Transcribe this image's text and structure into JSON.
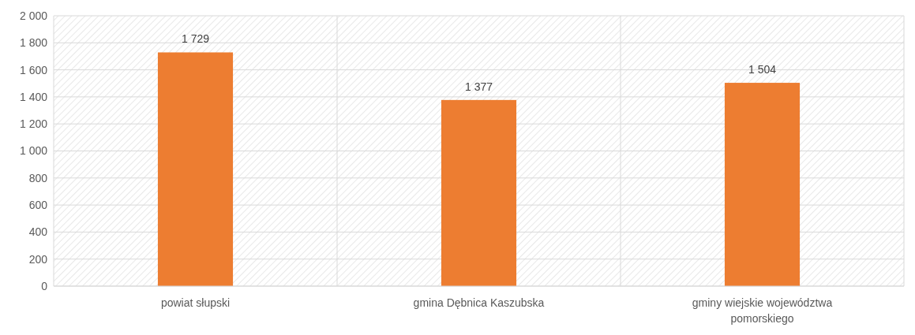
{
  "chart_data": {
    "type": "bar",
    "categories": [
      "powiat słupski",
      "gmina Dębnica Kaszubska",
      "gminy wiejskie województwa pomorskiego"
    ],
    "values": [
      1729,
      1377,
      1504
    ],
    "value_labels": [
      "1 729",
      "1 377",
      "1 504"
    ],
    "color": "#ed7d31",
    "ylim": [
      0,
      2000
    ],
    "yticks": [
      0,
      200,
      400,
      600,
      800,
      {
        "value": 1000,
        "label": "1 000"
      },
      {
        "value": 1200,
        "label": "1 200"
      },
      {
        "value": 1400,
        "label": "1 400"
      },
      {
        "value": 1600,
        "label": "1 600"
      },
      {
        "value": 1800,
        "label": "1 800"
      },
      {
        "value": 2000,
        "label": "2 000"
      }
    ],
    "grid": true
  }
}
